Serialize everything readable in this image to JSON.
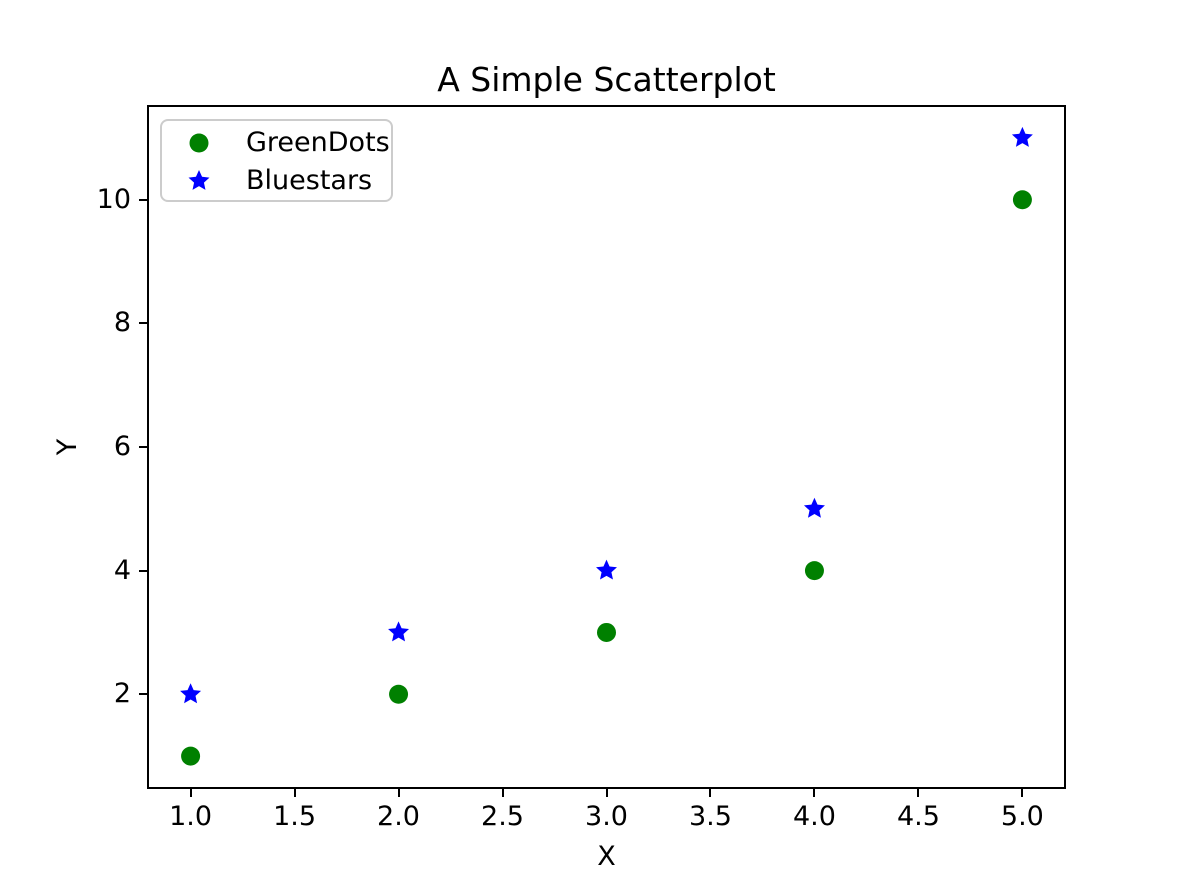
{
  "figure": {
    "background": "#ffffff"
  },
  "chart_data": {
    "type": "scatter",
    "title": "A Simple Scatterplot",
    "xlabel": "X",
    "ylabel": "Y",
    "xlim": [
      0.8,
      5.2
    ],
    "ylim": [
      0.5,
      11.5
    ],
    "x_ticks": [
      1.0,
      1.5,
      2.0,
      2.5,
      3.0,
      3.5,
      4.0,
      4.5,
      5.0
    ],
    "x_tick_labels": [
      "1.0",
      "1.5",
      "2.0",
      "2.5",
      "3.0",
      "3.5",
      "4.0",
      "4.5",
      "5.0"
    ],
    "y_ticks": [
      2,
      4,
      6,
      8,
      10
    ],
    "y_tick_labels": [
      "2",
      "4",
      "6",
      "8",
      "10"
    ],
    "grid": false,
    "legend_position": "upper left",
    "series": [
      {
        "name": "GreenDots",
        "marker": "circle",
        "color": "#008000",
        "x": [
          1,
          2,
          3,
          4,
          5
        ],
        "y": [
          1,
          2,
          3,
          4,
          10
        ]
      },
      {
        "name": "Bluestars",
        "marker": "star",
        "color": "#0000ff",
        "x": [
          1,
          2,
          3,
          4,
          5
        ],
        "y": [
          2,
          3,
          4,
          5,
          11
        ]
      }
    ]
  },
  "legend": {
    "entries": [
      {
        "label": "GreenDots",
        "marker": "circle",
        "color": "#008000"
      },
      {
        "label": "Bluestars",
        "marker": "star",
        "color": "#0000ff"
      }
    ]
  }
}
